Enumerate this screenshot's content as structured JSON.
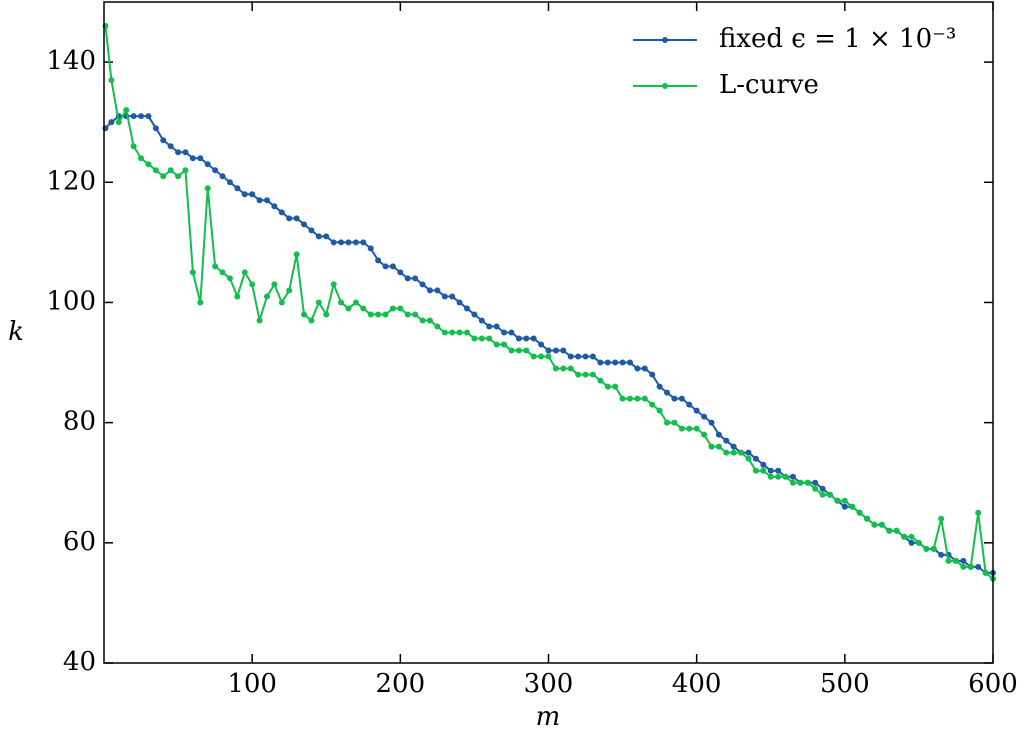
{
  "chart_data": {
    "type": "line",
    "xlabel": "m",
    "ylabel": "k",
    "x": [
      1,
      5,
      10,
      15,
      20,
      25,
      30,
      35,
      40,
      45,
      50,
      55,
      60,
      65,
      70,
      75,
      80,
      85,
      90,
      95,
      100,
      105,
      110,
      115,
      120,
      125,
      130,
      135,
      140,
      145,
      150,
      155,
      160,
      165,
      170,
      175,
      180,
      185,
      190,
      195,
      200,
      205,
      210,
      215,
      220,
      225,
      230,
      235,
      240,
      245,
      250,
      255,
      260,
      265,
      270,
      275,
      280,
      285,
      290,
      295,
      300,
      305,
      310,
      315,
      320,
      325,
      330,
      335,
      340,
      345,
      350,
      355,
      360,
      365,
      370,
      375,
      380,
      385,
      390,
      395,
      400,
      405,
      410,
      415,
      420,
      425,
      430,
      435,
      440,
      445,
      450,
      455,
      460,
      465,
      470,
      475,
      480,
      485,
      490,
      495,
      500,
      505,
      510,
      515,
      520,
      525,
      530,
      535,
      540,
      545,
      550,
      555,
      560,
      565,
      570,
      575,
      580,
      585,
      590,
      595,
      600
    ],
    "series": [
      {
        "name": "fixed ϵ = 1 × 10⁻³",
        "color": "#1f5aa6",
        "values": [
          129,
          130,
          131,
          131,
          131,
          131,
          131,
          129,
          127,
          126,
          125,
          125,
          124,
          124,
          123,
          122,
          121,
          120,
          119,
          118,
          118,
          117,
          117,
          116,
          115,
          114,
          114,
          113,
          112,
          111,
          111,
          110,
          110,
          110,
          110,
          110,
          109,
          107,
          106,
          106,
          105,
          104,
          104,
          103,
          102,
          102,
          101,
          101,
          100,
          99,
          98,
          97,
          96,
          96,
          95,
          95,
          94,
          94,
          94,
          93,
          92,
          92,
          92,
          91,
          91,
          91,
          91,
          90,
          90,
          90,
          90,
          90,
          89,
          89,
          88,
          86,
          85,
          84,
          84,
          83,
          82,
          81,
          80,
          78,
          77,
          76,
          75,
          75,
          74,
          73,
          72,
          72,
          71,
          71,
          70,
          70,
          70,
          69,
          68,
          67,
          66,
          66,
          65,
          64,
          63,
          63,
          62,
          62,
          61,
          60,
          60,
          59,
          59,
          58,
          58,
          57,
          57,
          56,
          56,
          55,
          55
        ]
      },
      {
        "name": "L-curve",
        "color": "#12bf4c",
        "values": [
          146,
          137,
          130,
          132,
          126,
          124,
          123,
          122,
          121,
          122,
          121,
          122,
          105,
          100,
          119,
          106,
          105,
          104,
          101,
          105,
          103,
          97,
          101,
          103,
          100,
          102,
          108,
          98,
          97,
          100,
          98,
          103,
          100,
          99,
          100,
          99,
          98,
          98,
          98,
          99,
          99,
          98,
          98,
          97,
          97,
          96,
          95,
          95,
          95,
          95,
          94,
          94,
          94,
          93,
          93,
          92,
          92,
          92,
          91,
          91,
          91,
          89,
          89,
          89,
          88,
          88,
          88,
          87,
          86,
          86,
          84,
          84,
          84,
          84,
          83,
          82,
          80,
          80,
          79,
          79,
          79,
          78,
          76,
          76,
          75,
          75,
          75,
          74,
          72,
          72,
          71,
          71,
          71,
          70,
          70,
          70,
          69,
          68,
          68,
          67,
          67,
          66,
          65,
          64,
          63,
          63,
          62,
          62,
          61,
          61,
          60,
          59,
          59,
          64,
          57,
          57,
          56,
          56,
          65,
          55,
          54
        ]
      }
    ],
    "xlim": [
      0,
      600
    ],
    "xticks": [
      100,
      200,
      300,
      400,
      500,
      600
    ],
    "ylim": [
      40,
      150
    ],
    "yticks": [
      40,
      60,
      80,
      100,
      120,
      140
    ],
    "legend": "upper right"
  }
}
